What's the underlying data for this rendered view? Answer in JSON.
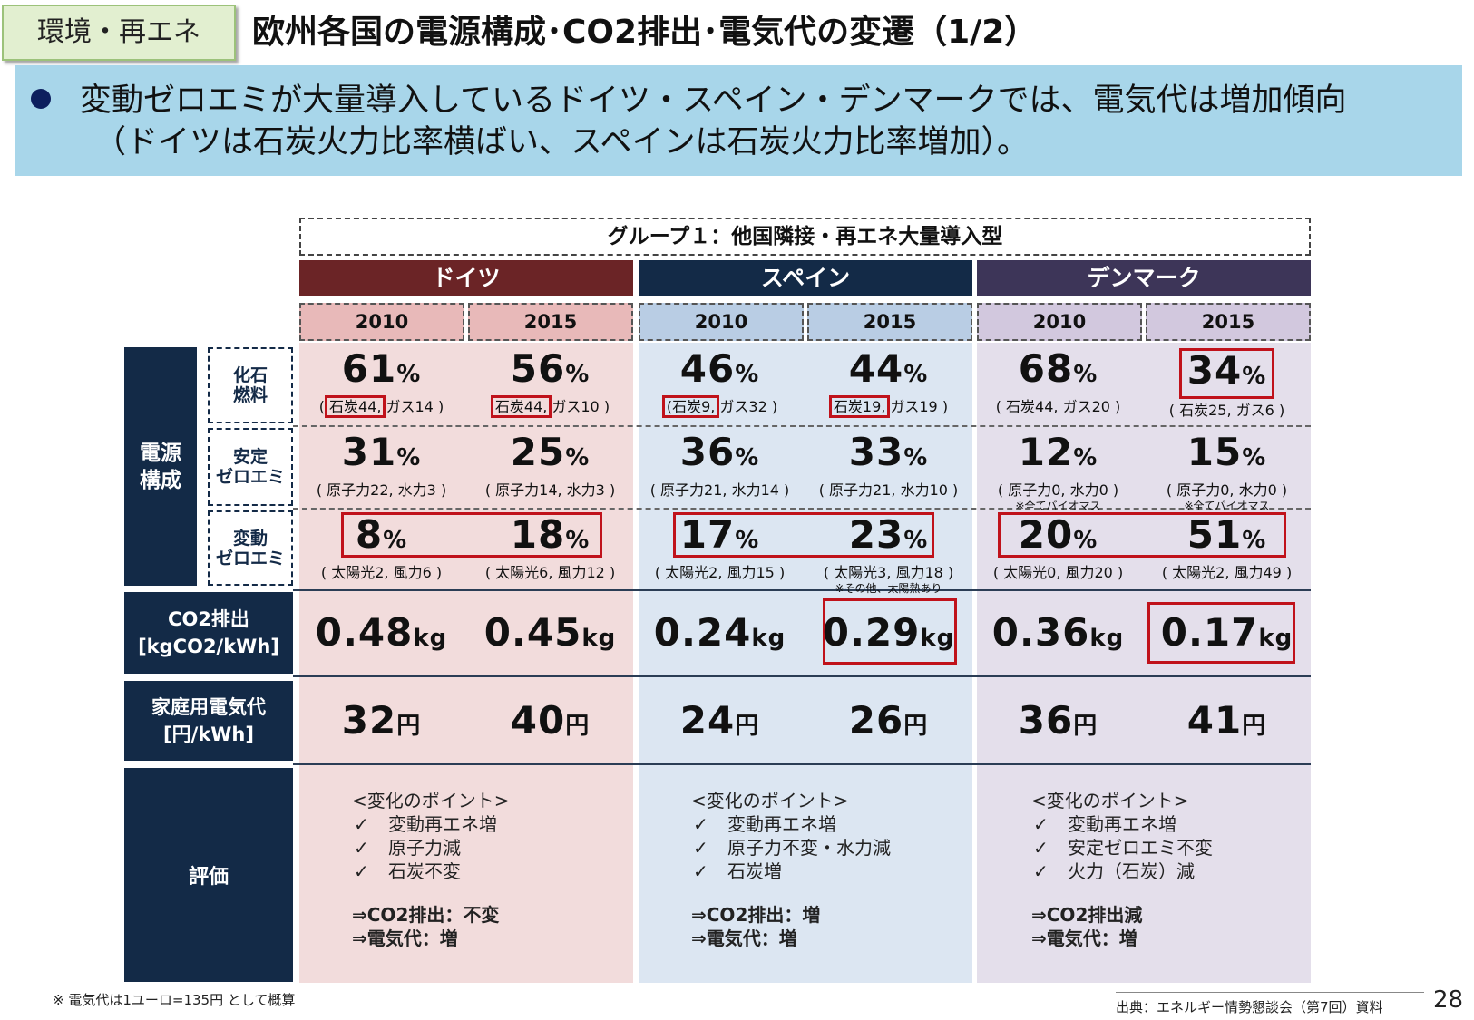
{
  "header": {
    "tag": "環境・再エネ",
    "title": "欧州各国の電源構成･CO2排出･電気代の変遷（1/2）"
  },
  "banner": {
    "line1": "変動ゼロエミが大量導入しているドイツ・スペイン・デンマークでは、電気代は増加傾向",
    "line2": "（ドイツは石炭火力比率横ばい、スペインは石炭火力比率増加）。"
  },
  "group_title": "グループ１：他国隣接・再エネ大量導入型",
  "countries": [
    {
      "name": "ドイツ",
      "color": "#6b2426"
    },
    {
      "name": "スペイン",
      "color": "#132a47"
    },
    {
      "name": "デンマーク",
      "color": "#3d3558"
    }
  ],
  "years": [
    "2010",
    "2015",
    "2010",
    "2015",
    "2010",
    "2015"
  ],
  "row_heads": {
    "power_mix": "電源\n構成",
    "fossil": "化石\n燃料",
    "stable_zero": "安定\nゼロエミ",
    "variable_zero": "変動\nゼロエミ",
    "co2": "CO2排出",
    "co2_unit": "[kgCO2/kWh]",
    "price": "家庭用電気代",
    "price_unit": "[円/kWh]",
    "evaluation": "評価"
  },
  "units": {
    "percent": "%",
    "kg": "kg",
    "yen": "円"
  },
  "fossil": [
    {
      "value": "61",
      "coal": "石炭44,",
      "rest": "ガス14",
      "open": "(",
      "close": ")"
    },
    {
      "value": "56",
      "coal": "石炭44,",
      "rest": "ガス10",
      "open": "(",
      "close": ")"
    },
    {
      "value": "46",
      "coal": "石炭9,",
      "rest": "ガス32",
      "open": "(",
      "close": ")"
    },
    {
      "value": "44",
      "coal": "石炭19,",
      "rest": "ガス19",
      "open": "(",
      "close": ")"
    },
    {
      "value": "68",
      "coal": "石炭44,",
      "rest": "ガス20",
      "open": "(",
      "close": ")"
    },
    {
      "value": "34",
      "coal": "石炭25,",
      "rest": "ガス6",
      "open": "(",
      "close": ")"
    }
  ],
  "stable": [
    {
      "value": "31",
      "detail": "( 原子力22, 水力3 )"
    },
    {
      "value": "25",
      "detail": "( 原子力14, 水力3 )"
    },
    {
      "value": "36",
      "detail": "( 原子力21, 水力14 )"
    },
    {
      "value": "33",
      "detail": "( 原子力21, 水力10 )"
    },
    {
      "value": "12",
      "detail": "( 原子力0, 水力0 )",
      "note": "※全てバイオマス"
    },
    {
      "value": "15",
      "detail": "( 原子力0, 水力0 )",
      "note": "※全てバイオマス"
    }
  ],
  "variable": [
    {
      "value": "8",
      "detail": "( 太陽光2, 風力6 )"
    },
    {
      "value": "18",
      "detail": "( 太陽光6, 風力12 )"
    },
    {
      "value": "17",
      "detail": "( 太陽光2, 風力15 )"
    },
    {
      "value": "23",
      "detail": "( 太陽光3, 風力18 )",
      "note": "※その他、太陽熱あり"
    },
    {
      "value": "20",
      "detail": "( 太陽光0, 風力20 )"
    },
    {
      "value": "51",
      "detail": "( 太陽光2, 風力49 )"
    }
  ],
  "co2": [
    "0.48",
    "0.45",
    "0.24",
    "0.29",
    "0.36",
    "0.17"
  ],
  "price": [
    "32",
    "40",
    "24",
    "26",
    "36",
    "41"
  ],
  "evaluation": [
    {
      "heading": "<変化のポイント>",
      "checks": [
        "変動再エネ増",
        "原子力減",
        "石炭不変"
      ],
      "results": [
        "⇒CO2排出：不変",
        "⇒電気代：増"
      ]
    },
    {
      "heading": "<変化のポイント>",
      "checks": [
        "変動再エネ増",
        "原子力不変・水力減",
        "石炭増"
      ],
      "results": [
        "⇒CO2排出：増",
        "⇒電気代：増"
      ]
    },
    {
      "heading": "<変化のポイント>",
      "checks": [
        "変動再エネ増",
        "安定ゼロエミ不変",
        "火力（石炭）減"
      ],
      "results": [
        "⇒CO2排出減",
        "⇒電気代：増"
      ]
    }
  ],
  "check_mark": "✓",
  "footnote": "※ 電気代は1ユーロ=135円 として概算",
  "source": "出典：エネルギー情勢懇談会（第7回）資料",
  "page_number": "28"
}
